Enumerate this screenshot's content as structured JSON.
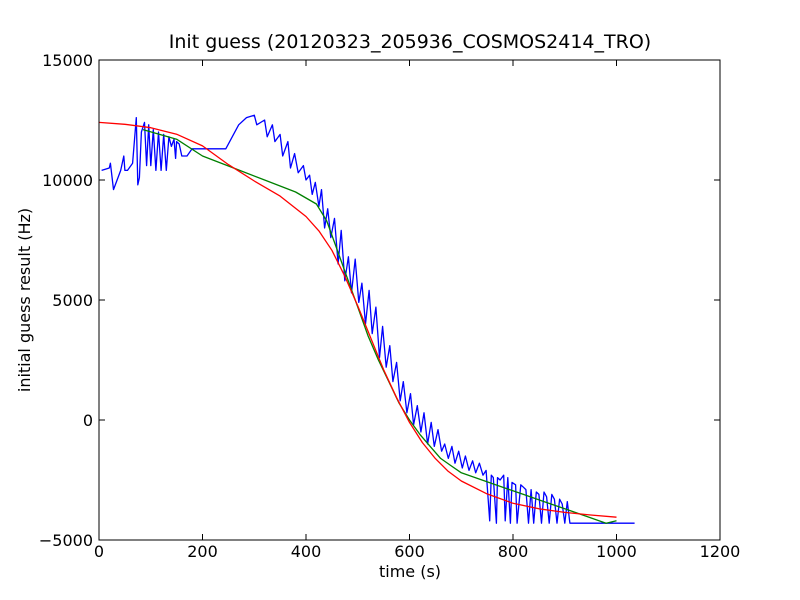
{
  "chart_data": {
    "type": "line",
    "title": "Init guess (20120323_205936_COSMOS2414_TRO)",
    "xlabel": "time (s)",
    "ylabel": "initial guess result (Hz)",
    "xlim": [
      0,
      1200
    ],
    "ylim": [
      -5000,
      15000
    ],
    "xticks": [
      0,
      200,
      400,
      600,
      800,
      1000,
      1200
    ],
    "yticks": [
      -5000,
      0,
      5000,
      10000,
      15000
    ],
    "xtick_labels": [
      "0",
      "200",
      "400",
      "600",
      "800",
      "1000",
      "1200"
    ],
    "ytick_labels": [
      "−5000",
      "0",
      "5000",
      "10000",
      "15000"
    ],
    "grid": false,
    "legend": "none",
    "series": [
      {
        "color": "#0000ff",
        "x": [
          5,
          20,
          22,
          28,
          35,
          42,
          48,
          50,
          55,
          65,
          72,
          75,
          78,
          82,
          88,
          92,
          96,
          100,
          105,
          110,
          115,
          120,
          125,
          130,
          135,
          140,
          145,
          148,
          150,
          155,
          160,
          165,
          170,
          180,
          185,
          190,
          195,
          200,
          220,
          245,
          270,
          285,
          300,
          305,
          320,
          325,
          335,
          340,
          350,
          355,
          365,
          370,
          378,
          385,
          395,
          400,
          407,
          412,
          418,
          425,
          430,
          436,
          442,
          448,
          455,
          462,
          468,
          475,
          482,
          488,
          495,
          502,
          508,
          515,
          522,
          528,
          535,
          542,
          548,
          555,
          562,
          568,
          575,
          582,
          588,
          595,
          602,
          608,
          615,
          622,
          628,
          635,
          642,
          648,
          655,
          662,
          668,
          675,
          682,
          688,
          695,
          702,
          708,
          715,
          722,
          728,
          735,
          742,
          748,
          755,
          758,
          762,
          768,
          770,
          775,
          782,
          785,
          790,
          795,
          798,
          805,
          808,
          815,
          820,
          825,
          830,
          835,
          840,
          845,
          850,
          855,
          860,
          865,
          870,
          875,
          880,
          885,
          890,
          895,
          900,
          905,
          910,
          915,
          920,
          930,
          940,
          950,
          960,
          970,
          980,
          990,
          1000,
          1010,
          1020,
          1035
        ],
        "y": [
          10400,
          10500,
          10700,
          9600,
          10000,
          10400,
          11000,
          10400,
          10400,
          10700,
          12600,
          9800,
          10100,
          12000,
          12400,
          10600,
          12300,
          10600,
          12100,
          10400,
          12000,
          10400,
          11900,
          10400,
          11800,
          11400,
          11700,
          10900,
          11600,
          11500,
          11000,
          11000,
          11000,
          11300,
          11300,
          11300,
          11300,
          11300,
          11300,
          11300,
          12300,
          12600,
          12700,
          12300,
          12500,
          11800,
          12300,
          11600,
          11900,
          11000,
          11600,
          10500,
          11100,
          10300,
          10600,
          10000,
          10200,
          9400,
          9900,
          8900,
          9600,
          8000,
          8800,
          7600,
          8400,
          6500,
          7900,
          5800,
          6800,
          5300,
          6700,
          4900,
          5700,
          4000,
          5400,
          3600,
          4700,
          2600,
          3900,
          2200,
          3100,
          1600,
          2400,
          800,
          1600,
          300,
          1100,
          -200,
          600,
          -500,
          300,
          -1000,
          -100,
          -1100,
          -400,
          -1300,
          -1000,
          -1600,
          -1100,
          -1800,
          -1300,
          -2000,
          -1500,
          -2100,
          -1700,
          -2200,
          -1800,
          -2300,
          -2100,
          -4200,
          -2300,
          -2400,
          -4300,
          -2400,
          -2500,
          -2300,
          -4200,
          -2400,
          -4300,
          -2600,
          -2700,
          -4300,
          -2700,
          -2800,
          -2900,
          -4300,
          -2900,
          -4300,
          -3000,
          -3100,
          -4300,
          -3000,
          -3200,
          -4300,
          -3100,
          -3300,
          -4300,
          -3300,
          -3500,
          -4300,
          -3400,
          -4300,
          -4300,
          -4300,
          -4300,
          -4300,
          -4300,
          -4300,
          -4300,
          -4300,
          -4300,
          -4300,
          -4300,
          -4300,
          -4300
        ]
      },
      {
        "color": "#008000",
        "x": [
          85,
          150,
          200,
          260,
          320,
          380,
          420,
          440,
          460,
          480,
          500,
          520,
          540,
          560,
          580,
          600,
          620,
          640,
          660,
          680,
          700,
          740,
          780,
          820,
          860,
          900,
          940,
          980,
          1000
        ],
        "y": [
          12100,
          11700,
          11000,
          10500,
          10000,
          9500,
          9000,
          8300,
          7100,
          5900,
          4700,
          3500,
          2500,
          1600,
          700,
          0,
          -600,
          -1100,
          -1600,
          -1900,
          -2200,
          -2500,
          -2800,
          -3100,
          -3400,
          -3700,
          -4000,
          -4300,
          -4200
        ]
      },
      {
        "color": "#ff0000",
        "x": [
          0,
          50,
          100,
          150,
          200,
          250,
          300,
          350,
          400,
          425,
          450,
          475,
          500,
          525,
          550,
          575,
          600,
          625,
          650,
          675,
          700,
          750,
          800,
          850,
          900,
          950,
          1000
        ],
        "y": [
          12400,
          12320,
          12180,
          11910,
          11420,
          10640,
          9960,
          9330,
          8480,
          7880,
          7070,
          5990,
          4750,
          3420,
          2100,
          930,
          -100,
          -940,
          -1610,
          -2140,
          -2540,
          -3080,
          -3470,
          -3700,
          -3850,
          -3960,
          -4050
        ]
      }
    ]
  }
}
